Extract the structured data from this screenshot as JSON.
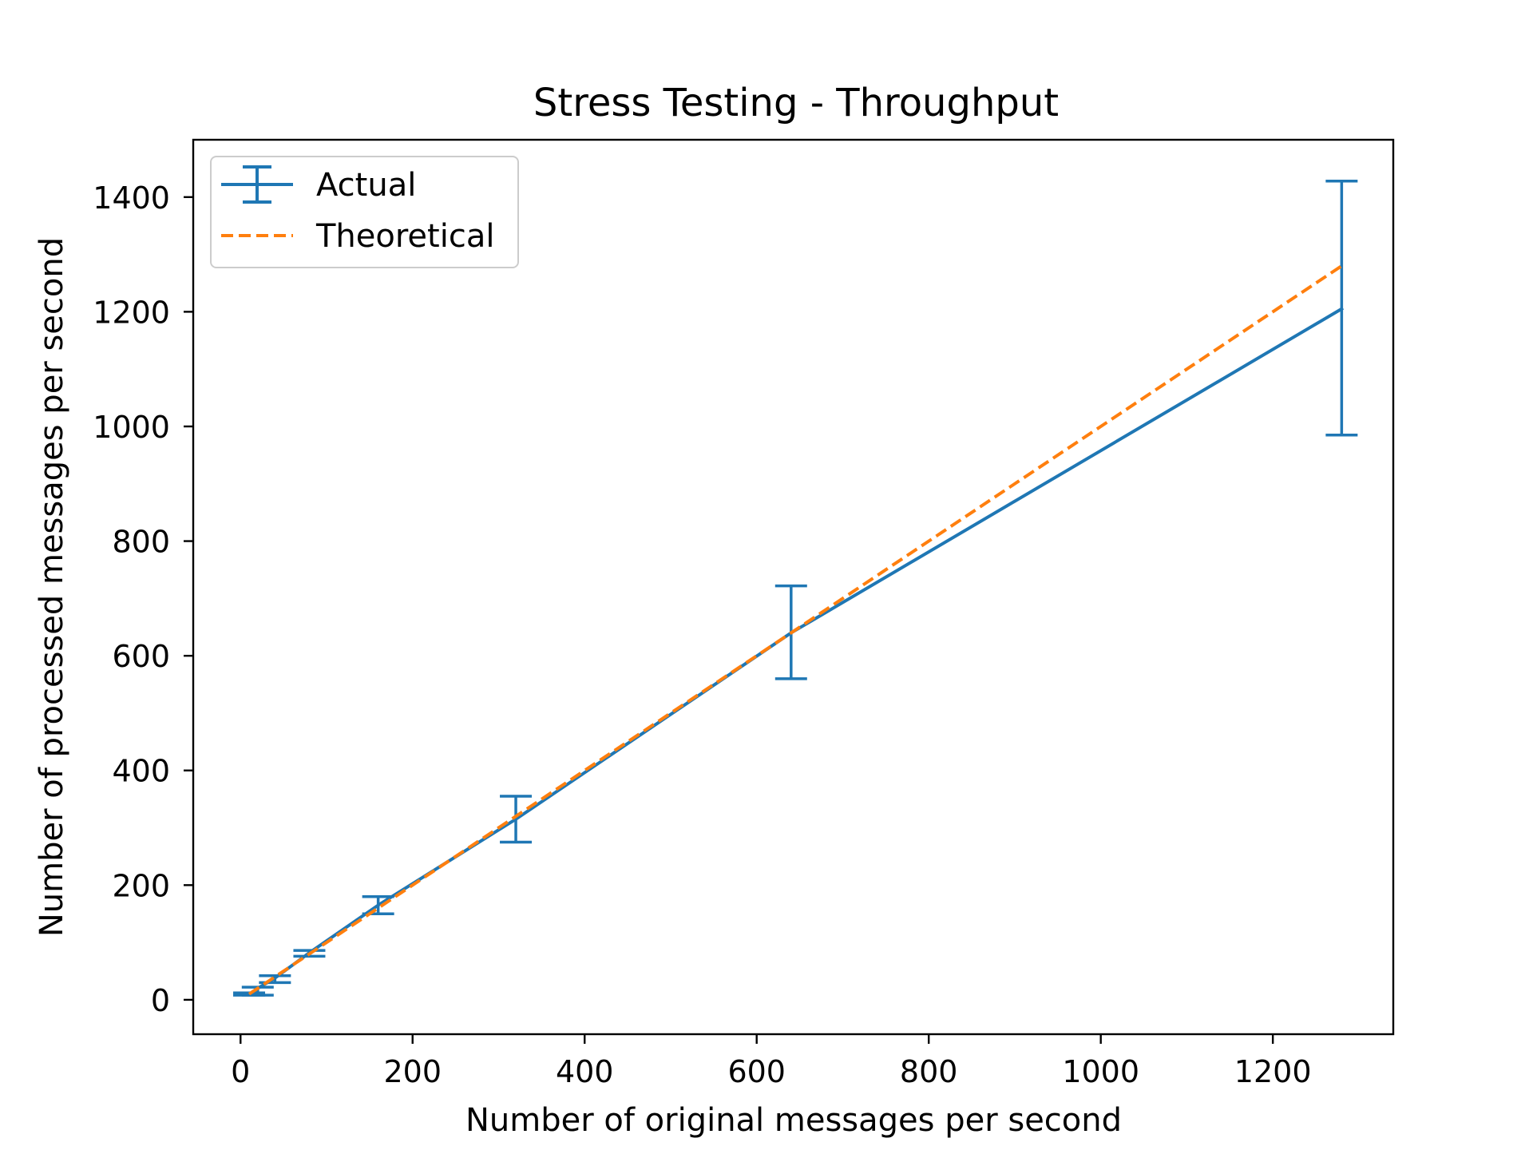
{
  "chart_data": {
    "type": "line",
    "title": "Stress Testing - Throughput",
    "xlabel": "Number of original messages per second",
    "ylabel": "Number of processed messages per second",
    "xlim": [
      -55,
      1340
    ],
    "ylim": [
      -60,
      1500
    ],
    "xticks": [
      0,
      200,
      400,
      600,
      800,
      1000,
      1200
    ],
    "yticks": [
      0,
      200,
      400,
      600,
      800,
      1000,
      1200,
      1400
    ],
    "xtick_labels": [
      "0",
      "200",
      "400",
      "600",
      "800",
      "1000",
      "1200"
    ],
    "ytick_labels": [
      "0",
      "200",
      "400",
      "600",
      "800",
      "1000",
      "1200",
      "1400"
    ],
    "grid": false,
    "legend_position": "top-left",
    "series": [
      {
        "name": "Actual",
        "style": "solid line with error bars",
        "color": "#1f77b4",
        "x": [
          10,
          20,
          40,
          80,
          160,
          320,
          640,
          1280
        ],
        "y": [
          10,
          20,
          38,
          82,
          165,
          315,
          640,
          1205
        ],
        "yerr_low": [
          8,
          8,
          30,
          76,
          150,
          275,
          560,
          985
        ],
        "yerr_high": [
          12,
          22,
          42,
          86,
          180,
          355,
          722,
          1428
        ]
      },
      {
        "name": "Theoretical",
        "style": "dashed line",
        "color": "#ff7f0e",
        "x": [
          10,
          20,
          40,
          80,
          160,
          320,
          640,
          1280
        ],
        "y": [
          10,
          20,
          40,
          80,
          160,
          320,
          640,
          1280
        ]
      }
    ]
  }
}
